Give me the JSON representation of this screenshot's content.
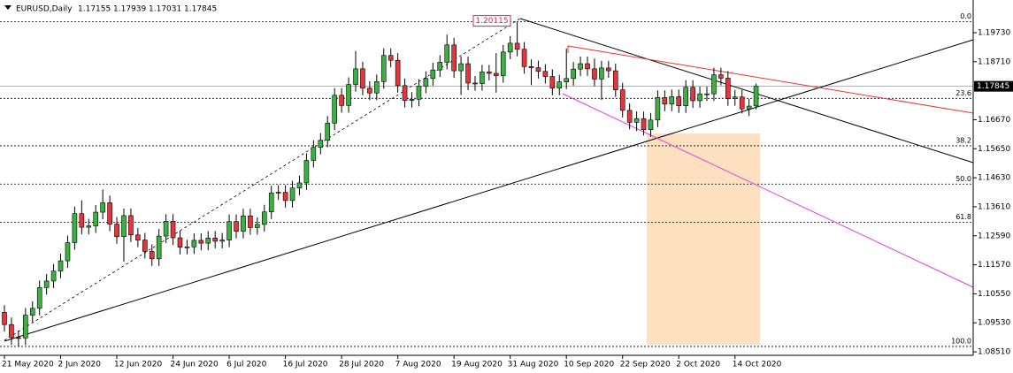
{
  "chart_data": {
    "type": "candlestick",
    "title": "EURUSD,Daily",
    "header": {
      "open": 1.17155,
      "high": 1.17939,
      "low": 1.17031,
      "close": 1.17845
    },
    "last_price": 1.17845,
    "x": [
      "21 May 2020",
      null,
      null,
      null,
      null,
      null,
      null,
      null,
      "2 Jun 2020",
      null,
      null,
      null,
      null,
      null,
      null,
      null,
      "12 Jun 2020",
      null,
      null,
      null,
      null,
      null,
      null,
      null,
      "24 Jun 2020",
      null,
      null,
      null,
      null,
      null,
      null,
      null,
      "6 Jul 2020",
      null,
      null,
      null,
      null,
      null,
      null,
      null,
      "16 Jul 2020",
      null,
      null,
      null,
      null,
      null,
      null,
      null,
      "28 Jul 2020",
      null,
      null,
      null,
      null,
      null,
      null,
      null,
      "7 Aug 2020",
      null,
      null,
      null,
      null,
      null,
      null,
      null,
      "19 Aug 2020",
      null,
      null,
      null,
      null,
      null,
      null,
      null,
      "31 Aug 2020",
      null,
      null,
      null,
      null,
      null,
      null,
      null,
      "10 Sep 2020",
      null,
      null,
      null,
      null,
      null,
      null,
      null,
      "22 Sep 2020",
      null,
      null,
      null,
      null,
      null,
      null,
      null,
      "2 Oct 2020",
      null,
      null,
      null,
      null,
      null,
      null,
      null,
      "14 Oct 2020",
      null,
      null,
      null
    ],
    "open": [
      1.099,
      1.0947,
      1.0901,
      1.09,
      1.098,
      1.1004,
      1.1077,
      1.11,
      1.1135,
      1.1171,
      1.1235,
      1.1337,
      1.1289,
      1.1294,
      1.1342,
      1.1375,
      1.13,
      1.1256,
      1.133,
      1.1262,
      1.1244,
      1.1204,
      1.1178,
      1.1258,
      1.131,
      1.1252,
      1.1219,
      1.122,
      1.1243,
      1.1233,
      1.1251,
      1.124,
      1.1244,
      1.1309,
      1.1275,
      1.1329,
      1.1288,
      1.1299,
      1.1343,
      1.141,
      1.1412,
      1.1383,
      1.1427,
      1.1445,
      1.1524,
      1.157,
      1.1595,
      1.1655,
      1.1753,
      1.1717,
      1.1791,
      1.1846,
      1.1778,
      1.1761,
      1.1801,
      1.1893,
      1.1876,
      1.1787,
      1.1735,
      1.1739,
      1.1785,
      1.1812,
      1.1842,
      1.1869,
      1.193,
      1.1839,
      1.1864,
      1.1796,
      1.1794,
      1.1835,
      1.183,
      1.1822,
      1.1905,
      1.1936,
      1.1915,
      1.1854,
      1.185,
      1.1837,
      1.1819,
      1.1778,
      1.18,
      1.1812,
      1.1845,
      1.1864,
      1.1846,
      1.181,
      1.1849,
      1.1839,
      1.1772,
      1.17,
      1.1658,
      1.1671,
      1.1632,
      1.1666,
      1.1745,
      1.1722,
      1.1748,
      1.1716,
      1.1781,
      1.1734,
      1.1758,
      1.1758,
      1.1825,
      1.1813,
      1.1741,
      1.1747,
      1.1705,
      1.17155
    ],
    "high": [
      1.1015,
      1.0972,
      1.0926,
      1.1005,
      1.1029,
      1.1102,
      1.1125,
      1.116,
      1.1196,
      1.126,
      1.1362,
      1.1384,
      1.1319,
      1.1367,
      1.1422,
      1.14,
      1.1325,
      1.1355,
      1.1355,
      1.1287,
      1.1269,
      1.1229,
      1.1283,
      1.1335,
      1.1335,
      1.1277,
      1.1245,
      1.1268,
      1.1268,
      1.1276,
      1.1276,
      1.1269,
      1.1334,
      1.1334,
      1.1354,
      1.1354,
      1.1324,
      1.1368,
      1.1435,
      1.1437,
      1.1437,
      1.1452,
      1.147,
      1.1549,
      1.1595,
      1.162,
      1.168,
      1.1778,
      1.1778,
      1.1816,
      1.1909,
      1.1871,
      1.1803,
      1.1826,
      1.1918,
      1.1918,
      1.1901,
      1.1812,
      1.1764,
      1.181,
      1.1837,
      1.1867,
      1.1894,
      1.1966,
      1.1955,
      1.1889,
      1.1889,
      1.1821,
      1.186,
      1.186,
      1.1901,
      1.193,
      1.1961,
      1.20115,
      1.194,
      1.1879,
      1.1875,
      1.1862,
      1.1844,
      1.1825,
      1.1917,
      1.187,
      1.1889,
      1.1889,
      1.1882,
      1.1874,
      1.1874,
      1.1864,
      1.1797,
      1.1725,
      1.1696,
      1.1696,
      1.1691,
      1.177,
      1.177,
      1.1773,
      1.1773,
      1.1806,
      1.1806,
      1.1783,
      1.1783,
      1.185,
      1.185,
      1.1838,
      1.1772,
      1.1772,
      1.174,
      1.17939
    ],
    "low": [
      1.0922,
      1.0876,
      1.087,
      1.0875,
      1.0955,
      1.0979,
      1.1052,
      1.1075,
      1.111,
      1.1146,
      1.121,
      1.1264,
      1.1264,
      1.1269,
      1.1317,
      1.1275,
      1.1231,
      1.1168,
      1.1237,
      1.1219,
      1.1179,
      1.1153,
      1.1153,
      1.1233,
      1.1227,
      1.1194,
      1.1194,
      1.1195,
      1.1208,
      1.1208,
      1.1215,
      1.1215,
      1.1219,
      1.125,
      1.125,
      1.1263,
      1.1263,
      1.1274,
      1.1318,
      1.1385,
      1.1358,
      1.1358,
      1.1402,
      1.142,
      1.1499,
      1.1545,
      1.157,
      1.163,
      1.1692,
      1.1692,
      1.1766,
      1.1753,
      1.1736,
      1.1736,
      1.1776,
      1.1851,
      1.1762,
      1.171,
      1.171,
      1.1714,
      1.176,
      1.1787,
      1.1817,
      1.1844,
      1.1814,
      1.1754,
      1.1771,
      1.1769,
      1.1769,
      1.1805,
      1.1762,
      1.1797,
      1.188,
      1.189,
      1.1829,
      1.1789,
      1.1812,
      1.1794,
      1.1753,
      1.1753,
      1.1775,
      1.1787,
      1.182,
      1.1821,
      1.1785,
      1.1737,
      1.1814,
      1.1747,
      1.1675,
      1.1633,
      1.1627,
      1.1612,
      1.1607,
      1.1641,
      1.1697,
      1.1697,
      1.1691,
      1.1691,
      1.1709,
      1.1709,
      1.1733,
      1.1733,
      1.1788,
      1.1716,
      1.1716,
      1.1689,
      1.168,
      1.17031
    ],
    "close": [
      1.0947,
      1.0901,
      1.09,
      1.098,
      1.1004,
      1.1077,
      1.11,
      1.1135,
      1.1171,
      1.1235,
      1.1337,
      1.1289,
      1.1294,
      1.1342,
      1.1375,
      1.13,
      1.1256,
      1.133,
      1.1262,
      1.1244,
      1.1204,
      1.1178,
      1.1258,
      1.131,
      1.1252,
      1.1219,
      1.122,
      1.1243,
      1.1233,
      1.1251,
      1.124,
      1.1244,
      1.1309,
      1.1275,
      1.1329,
      1.1288,
      1.1299,
      1.1343,
      1.141,
      1.1412,
      1.1383,
      1.1427,
      1.1445,
      1.1524,
      1.157,
      1.1595,
      1.1655,
      1.1753,
      1.1717,
      1.1791,
      1.1846,
      1.1778,
      1.1761,
      1.1801,
      1.1893,
      1.1876,
      1.1787,
      1.1735,
      1.1739,
      1.1785,
      1.1812,
      1.1842,
      1.1869,
      1.193,
      1.1839,
      1.1864,
      1.1796,
      1.1794,
      1.1835,
      1.183,
      1.1822,
      1.1905,
      1.1936,
      1.1915,
      1.1854,
      1.185,
      1.1837,
      1.1819,
      1.1778,
      1.18,
      1.1812,
      1.1845,
      1.1864,
      1.1846,
      1.181,
      1.1849,
      1.1839,
      1.1772,
      1.17,
      1.1658,
      1.1671,
      1.1632,
      1.1666,
      1.1745,
      1.1722,
      1.1748,
      1.1716,
      1.1781,
      1.1734,
      1.1758,
      1.1758,
      1.1825,
      1.1813,
      1.1741,
      1.1747,
      1.1705,
      1.1715,
      1.17845
    ],
    "up_color": "#3cb043",
    "down_color": "#e8343a",
    "ylim": [
      1.08388,
      1.20755
    ],
    "yticks": [
      {
        "value": 1.1973,
        "label": "1.19730"
      },
      {
        "value": 1.1871,
        "label": "1.18710"
      },
      {
        "value": 1.1667,
        "label": "1.16670"
      },
      {
        "value": 1.1565,
        "label": "1.15650"
      },
      {
        "value": 1.1463,
        "label": "1.14630"
      },
      {
        "value": 1.1361,
        "label": "1.13610"
      },
      {
        "value": 1.1259,
        "label": "1.12590"
      },
      {
        "value": 1.1157,
        "label": "1.11570"
      },
      {
        "value": 1.1055,
        "label": "1.10550"
      },
      {
        "value": 1.0953,
        "label": "1.09530"
      },
      {
        "value": 1.0851,
        "label": "1.08510"
      }
    ],
    "fib": {
      "high": 1.20115,
      "low": 1.087,
      "levels": [
        {
          "value": 0,
          "label": "0.0"
        },
        {
          "value": 23.6,
          "label": "23.6"
        },
        {
          "value": 38.2,
          "label": "38.2"
        },
        {
          "value": 50,
          "label": "50.0"
        },
        {
          "value": 61.8,
          "label": "61.8"
        },
        {
          "value": 100,
          "label": "100.0"
        }
      ]
    }
  }
}
